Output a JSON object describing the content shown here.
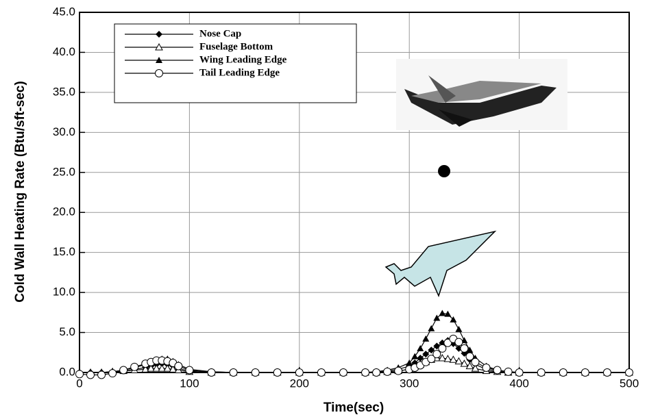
{
  "chart_data": {
    "type": "line",
    "x_label": "Time(sec)",
    "y_label": "Cold Wall Heating Rate (Btu/sft-sec)",
    "xlim": [
      0,
      500
    ],
    "xticks": [
      0,
      100,
      200,
      300,
      400,
      500
    ],
    "ylim": [
      0,
      45
    ],
    "yticks": [
      {
        "value": 0,
        "label": "0.0"
      },
      {
        "value": 5,
        "label": "5.0"
      },
      {
        "value": 10,
        "label": "10.0"
      },
      {
        "value": 15,
        "label": "15.0"
      },
      {
        "value": 20,
        "label": "20.0"
      },
      {
        "value": 25,
        "label": "25.0"
      },
      {
        "value": 30,
        "label": "30.0"
      },
      {
        "value": 35,
        "label": "35.0"
      },
      {
        "value": 40,
        "label": "40.0"
      },
      {
        "value": 45,
        "label": "45.0"
      }
    ],
    "grid": true,
    "legend": "upper left",
    "x": [
      0,
      10,
      20,
      30,
      40,
      50,
      60,
      65,
      70,
      75,
      80,
      85,
      90,
      100,
      120,
      140,
      160,
      180,
      200,
      220,
      240,
      260,
      270,
      280,
      290,
      300,
      305,
      310,
      315,
      320,
      325,
      330,
      335,
      340,
      345,
      350,
      355,
      360,
      370,
      380,
      390,
      400,
      420,
      440,
      460,
      480,
      500
    ],
    "series": [
      {
        "name": "Nose Cap",
        "color": "#000000",
        "marker": "diamond",
        "values": [
          0,
          0,
          0,
          0.1,
          0.2,
          0.4,
          0.6,
          0.8,
          1.0,
          1.1,
          1.0,
          0.8,
          0.5,
          0.2,
          0.1,
          0,
          0,
          0,
          0,
          0,
          0,
          0,
          0.1,
          0.2,
          0.4,
          0.8,
          1.2,
          1.8,
          2.3,
          2.8,
          3.3,
          3.7,
          4.0,
          3.6,
          3.0,
          2.4,
          1.6,
          1.0,
          0.4,
          0.2,
          0.1,
          0,
          0,
          0,
          0,
          0,
          0
        ]
      },
      {
        "name": "Fuselage Bottom",
        "color": "#000000",
        "marker": "triangle-open",
        "values": [
          0,
          0,
          0,
          0.1,
          0.2,
          0.3,
          0.4,
          0.5,
          0.5,
          0.5,
          0.5,
          0.4,
          0.3,
          0.1,
          0,
          0,
          0,
          0,
          0,
          0,
          0,
          0,
          0,
          0.1,
          0.2,
          0.4,
          0.7,
          1.0,
          1.3,
          1.6,
          1.8,
          1.8,
          1.7,
          1.6,
          1.4,
          1.1,
          0.8,
          0.5,
          0.2,
          0.1,
          0,
          0,
          0,
          0,
          0,
          0,
          0
        ]
      },
      {
        "name": "Wing Leading Edge",
        "color": "#000000",
        "marker": "triangle",
        "values": [
          0,
          0,
          0,
          0.1,
          0.3,
          0.6,
          1.0,
          1.3,
          1.6,
          1.7,
          1.7,
          1.4,
          1.0,
          0.4,
          0.1,
          0,
          0,
          0,
          0,
          0,
          0,
          0,
          0.1,
          0.3,
          0.6,
          1.2,
          2.0,
          3.0,
          4.2,
          5.5,
          6.8,
          7.4,
          7.3,
          6.6,
          5.4,
          4.0,
          2.8,
          1.8,
          0.8,
          0.3,
          0.1,
          0,
          0,
          0,
          0,
          0,
          0
        ]
      },
      {
        "name": "Tail Leading Edge",
        "color": "#000000",
        "marker": "circle-open",
        "values": [
          -0.2,
          -0.3,
          -0.3,
          -0.1,
          0.3,
          0.7,
          1.1,
          1.3,
          1.5,
          1.5,
          1.4,
          1.2,
          0.8,
          0.3,
          0,
          0,
          0,
          0,
          0,
          0,
          0,
          0,
          0,
          0.1,
          0.2,
          0.4,
          0.6,
          0.9,
          1.3,
          1.7,
          2.3,
          3.0,
          3.7,
          4.2,
          3.8,
          3.0,
          2.0,
          1.3,
          0.6,
          0.3,
          0.1,
          0,
          0,
          0,
          0,
          0,
          0
        ]
      }
    ]
  }
}
